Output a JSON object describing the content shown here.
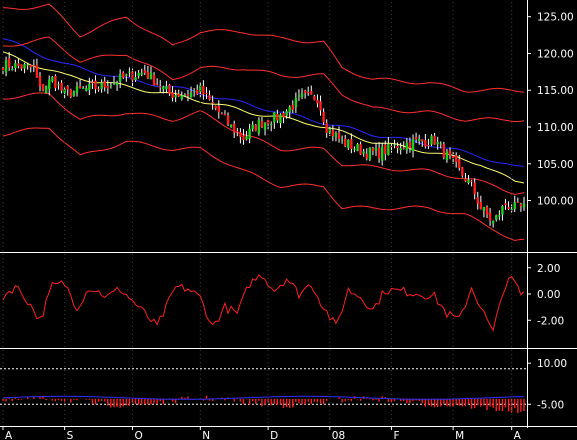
{
  "chart_data": [
    {
      "type": "candlestick",
      "panel": "price",
      "ylim": [
        93,
        127
      ],
      "yticks": [
        "125.00",
        "120.00",
        "115.00",
        "110.00",
        "105.00",
        "100.00"
      ],
      "ytick_values": [
        125,
        120,
        115,
        110,
        105,
        100
      ],
      "xticks": [
        "A",
        "S",
        "O",
        "N",
        "D",
        "08",
        "F",
        "M",
        "A"
      ],
      "x_anchor_days": [
        0,
        20,
        42,
        64,
        86,
        106,
        126,
        146,
        165
      ],
      "n_days": 170,
      "close_anchors": [
        [
          0,
          118.5
        ],
        [
          10,
          118
        ],
        [
          12,
          115
        ],
        [
          16,
          116.5
        ],
        [
          20,
          114.5
        ],
        [
          25,
          115
        ],
        [
          32,
          115.5
        ],
        [
          40,
          116.8
        ],
        [
          46,
          117.5
        ],
        [
          50,
          116
        ],
        [
          54,
          114.5
        ],
        [
          60,
          114.5
        ],
        [
          64,
          115
        ],
        [
          70,
          112
        ],
        [
          74,
          110
        ],
        [
          78,
          108.5
        ],
        [
          83,
          110.5
        ],
        [
          90,
          111.5
        ],
        [
          97,
          114
        ],
        [
          102,
          114
        ],
        [
          105,
          110
        ],
        [
          110,
          108
        ],
        [
          118,
          106.5
        ],
        [
          122,
          106.5
        ],
        [
          128,
          107.5
        ],
        [
          134,
          108
        ],
        [
          140,
          108.2
        ],
        [
          146,
          105
        ],
        [
          152,
          102
        ],
        [
          155,
          99
        ],
        [
          159,
          97
        ],
        [
          163,
          99.5
        ],
        [
          166,
          99
        ]
      ],
      "series": [
        {
          "name": "",
          "color": "#2828ff",
          "anchors": [
            [
              0,
              122
            ],
            [
              20,
              118.5
            ],
            [
              40,
              116.5
            ],
            [
              60,
              115
            ],
            [
              80,
              113
            ],
            [
              100,
              111
            ],
            [
              120,
              109
            ],
            [
              140,
              107.5
            ],
            [
              155,
              106
            ],
            [
              166,
              104.5
            ]
          ]
        },
        {
          "name": "",
          "color": "#ffff70",
          "anchors": [
            [
              0,
              120
            ],
            [
              20,
              117
            ],
            [
              40,
              115.5
            ],
            [
              60,
              114
            ],
            [
              80,
              112
            ],
            [
              100,
              110.5
            ],
            [
              120,
              108
            ],
            [
              140,
              106.5
            ],
            [
              155,
              105
            ],
            [
              166,
              102.5
            ]
          ]
        },
        {
          "name": "",
          "color": "#ff3030",
          "anchors": [
            [
              0,
              126
            ],
            [
              15,
              126.5
            ],
            [
              25,
              122.5
            ],
            [
              40,
              125
            ],
            [
              55,
              121
            ],
            [
              64,
              123
            ],
            [
              78,
              123
            ],
            [
              90,
              122
            ],
            [
              104,
              121.5
            ],
            [
              110,
              118
            ],
            [
              120,
              116.5
            ],
            [
              138,
              116
            ],
            [
              150,
              115
            ],
            [
              160,
              115
            ],
            [
              166,
              115
            ]
          ]
        },
        {
          "name": "",
          "color": "#ff3030",
          "anchors": [
            [
              0,
              121
            ],
            [
              15,
              122
            ],
            [
              25,
              119
            ],
            [
              40,
              120
            ],
            [
              55,
              116.5
            ],
            [
              64,
              118
            ],
            [
              78,
              118
            ],
            [
              90,
              117
            ],
            [
              104,
              117
            ],
            [
              110,
              114.5
            ],
            [
              120,
              112.5
            ],
            [
              138,
              112
            ],
            [
              150,
              111
            ],
            [
              160,
              111
            ],
            [
              166,
              111
            ]
          ]
        },
        {
          "name": "",
          "color": "#ff3030",
          "anchors": [
            [
              0,
              114
            ],
            [
              15,
              114.5
            ],
            [
              25,
              111
            ],
            [
              40,
              112
            ],
            [
              55,
              111
            ],
            [
              64,
              112
            ],
            [
              78,
              109
            ],
            [
              90,
              107
            ],
            [
              104,
              107
            ],
            [
              110,
              105
            ],
            [
              120,
              104.5
            ],
            [
              138,
              104
            ],
            [
              150,
              103
            ],
            [
              160,
              102
            ],
            [
              166,
              101
            ]
          ]
        },
        {
          "name": "",
          "color": "#ff3030",
          "anchors": [
            [
              0,
              109
            ],
            [
              15,
              110
            ],
            [
              25,
              106
            ],
            [
              40,
              108
            ],
            [
              55,
              107
            ],
            [
              64,
              107
            ],
            [
              78,
              104
            ],
            [
              90,
              102
            ],
            [
              104,
              102
            ],
            [
              110,
              99
            ],
            [
              120,
              99
            ],
            [
              138,
              99
            ],
            [
              150,
              98
            ],
            [
              160,
              96
            ],
            [
              166,
              94.5
            ]
          ]
        }
      ]
    },
    {
      "type": "line",
      "panel": "oscillator",
      "ylim": [
        -3.2,
        3.2
      ],
      "yticks": [
        "2.00",
        "0.00",
        "-2.00"
      ],
      "ytick_values": [
        2,
        0,
        -2
      ],
      "series": [
        {
          "name": "",
          "color": "#ff2020",
          "anchors": [
            [
              0,
              -0.2
            ],
            [
              4,
              0.6
            ],
            [
              8,
              -0.5
            ],
            [
              12,
              -2
            ],
            [
              16,
              0.6
            ],
            [
              20,
              0.8
            ],
            [
              24,
              -1
            ],
            [
              28,
              0.5
            ],
            [
              34,
              -0.2
            ],
            [
              38,
              0.4
            ],
            [
              44,
              -1
            ],
            [
              50,
              -2.5
            ],
            [
              56,
              0.5
            ],
            [
              60,
              0.4
            ],
            [
              64,
              -0.3
            ],
            [
              68,
              -2.5
            ],
            [
              72,
              -1
            ],
            [
              76,
              -1.5
            ],
            [
              80,
              0.8
            ],
            [
              84,
              1.5
            ],
            [
              88,
              0.3
            ],
            [
              92,
              1.2
            ],
            [
              96,
              0
            ],
            [
              100,
              0.8
            ],
            [
              104,
              -1
            ],
            [
              108,
              -2.5
            ],
            [
              112,
              0.3
            ],
            [
              116,
              -0.2
            ],
            [
              120,
              -1.2
            ],
            [
              124,
              0.3
            ],
            [
              130,
              0.2
            ],
            [
              136,
              0
            ],
            [
              140,
              -0.2
            ],
            [
              144,
              -1.5
            ],
            [
              148,
              -2
            ],
            [
              152,
              0.5
            ],
            [
              156,
              -1.5
            ],
            [
              159,
              -3
            ],
            [
              162,
              0.2
            ],
            [
              165,
              1.2
            ],
            [
              168,
              0
            ]
          ]
        }
      ]
    },
    {
      "type": "bar",
      "panel": "histogram",
      "ylim": [
        -10,
        13
      ],
      "yticks": [
        "10.00",
        "-5.00"
      ],
      "ytick_values": [
        10,
        -5
      ],
      "threshold_lines": [
        8,
        -5
      ],
      "bar_color": "#ff2020",
      "line_color": "#3030ff"
    }
  ]
}
